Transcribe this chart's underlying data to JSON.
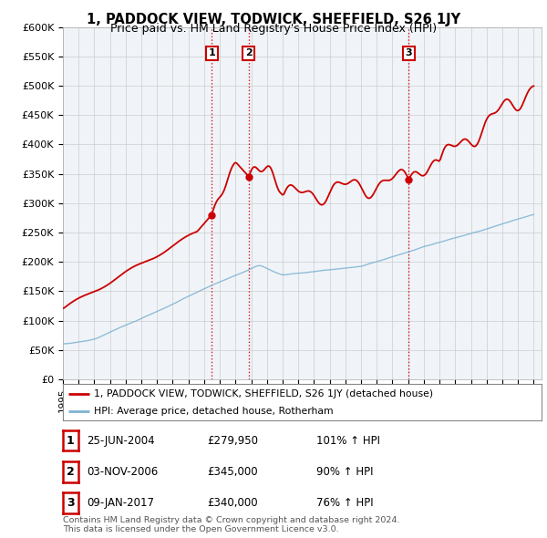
{
  "title": "1, PADDOCK VIEW, TODWICK, SHEFFIELD, S26 1JY",
  "subtitle": "Price paid vs. HM Land Registry's House Price Index (HPI)",
  "ylabel_ticks": [
    "£0",
    "£50K",
    "£100K",
    "£150K",
    "£200K",
    "£250K",
    "£300K",
    "£350K",
    "£400K",
    "£450K",
    "£500K",
    "£550K",
    "£600K"
  ],
  "ytick_values": [
    0,
    50000,
    100000,
    150000,
    200000,
    250000,
    300000,
    350000,
    400000,
    450000,
    500000,
    550000,
    600000
  ],
  "x_start_year": 1995,
  "x_end_year": 2025,
  "transactions": [
    {
      "date": 2004.48,
      "price": 279950,
      "label": "1"
    },
    {
      "date": 2006.84,
      "price": 345000,
      "label": "2"
    },
    {
      "date": 2017.03,
      "price": 340000,
      "label": "3"
    }
  ],
  "legend_line1": "1, PADDOCK VIEW, TODWICK, SHEFFIELD, S26 1JY (detached house)",
  "legend_line2": "HPI: Average price, detached house, Rotherham",
  "table_rows": [
    {
      "num": "1",
      "date": "25-JUN-2004",
      "price": "£279,950",
      "hpi": "101% ↑ HPI"
    },
    {
      "num": "2",
      "date": "03-NOV-2006",
      "price": "£345,000",
      "hpi": "90% ↑ HPI"
    },
    {
      "num": "3",
      "date": "09-JAN-2017",
      "price": "£340,000",
      "hpi": "76% ↑ HPI"
    }
  ],
  "footnote": "Contains HM Land Registry data © Crown copyright and database right 2024.\nThis data is licensed under the Open Government Licence v3.0.",
  "red_color": "#cc0000",
  "blue_color": "#7fb3d3",
  "vline_color": "#cc0000",
  "bg_color": "#ffffff",
  "grid_color": "#cccccc"
}
